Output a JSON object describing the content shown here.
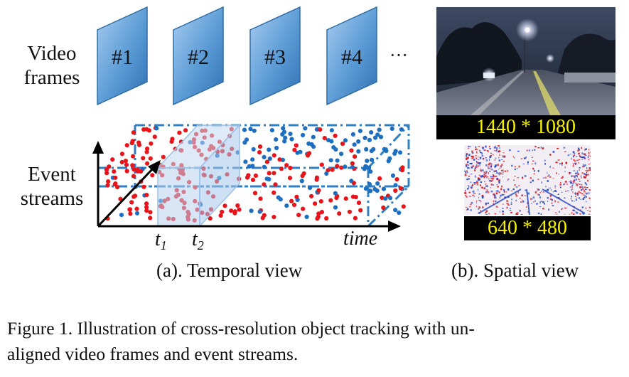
{
  "labels": {
    "video_frames": [
      "Video",
      "frames"
    ],
    "event_streams": [
      "Event",
      "streams"
    ]
  },
  "frames": [
    "#1",
    "#2",
    "#3",
    "#4"
  ],
  "frames_more": "···",
  "axis": {
    "t1": "t",
    "t1_sub": "1",
    "t2": "t",
    "t2_sub": "2",
    "time": "time"
  },
  "resolutions": {
    "rgb": "1440 * 1080",
    "event": "640 * 480"
  },
  "panels": {
    "a": "(a). Temporal view",
    "b": "(b). Spatial view"
  },
  "caption": "Figure 1. Illustration of cross-resolution object tracking with un-aligned video frames and event streams.",
  "caption_lines": [
    "Figure 1.  Illustration of cross-resolution object tracking with un-",
    "aligned video frames and event streams."
  ],
  "colors": {
    "frame_fill": "#5b9bd5",
    "frame_edge": "#2e6da4",
    "cube_edge": "#2f7fc1",
    "event_red": "#e8141b",
    "event_blue": "#1f6fc0",
    "res_text": "#f4f000",
    "res_bg": "#000000"
  }
}
